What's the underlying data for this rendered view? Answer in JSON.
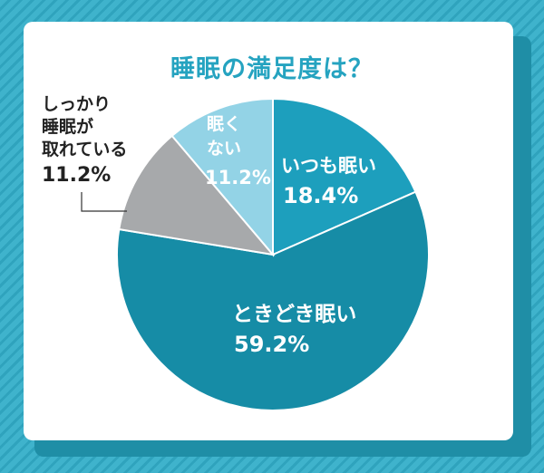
{
  "chart_data": {
    "type": "pie",
    "title": "睡眠の満足度は？",
    "slices": [
      {
        "label": "いつも眠い",
        "value": 18.4,
        "value_text": "18.4%",
        "color": "#1d9fbd",
        "text_color": "#ffffff"
      },
      {
        "label": "ときどき眠い",
        "value": 59.2,
        "value_text": "59.2%",
        "color": "#168ca6",
        "text_color": "#ffffff"
      },
      {
        "label": "しっかり睡眠が取れている",
        "label_lines": [
          "しっかり",
          "睡眠が",
          "取れている"
        ],
        "value": 11.2,
        "value_text": "11.2%",
        "color": "#a7a9ab",
        "text_color": "#222222"
      },
      {
        "label": "眠くない",
        "label_lines": [
          "眠く",
          "ない"
        ],
        "value": 11.2,
        "value_text": "11.2%",
        "color": "#93d3e6",
        "text_color": "#ffffff"
      }
    ],
    "start": "12 o'clock",
    "direction": "clockwise"
  }
}
